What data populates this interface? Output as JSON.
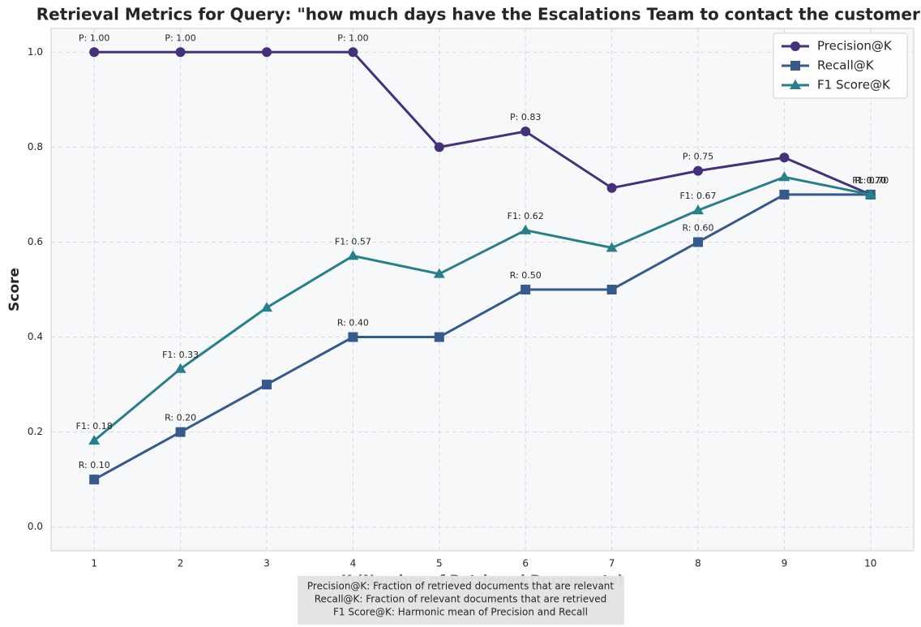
{
  "chart_data": {
    "type": "line",
    "title": "Retrieval Metrics for Query: \"how much days have the Escalations Team  to contact the customer\"",
    "x_label": "K (Number of Retrieved Documents)",
    "y_label": "Score",
    "x": [
      1,
      2,
      3,
      4,
      5,
      6,
      7,
      8,
      9,
      10
    ],
    "xlim": [
      0.5,
      10.5
    ],
    "xticks": [
      1,
      2,
      3,
      4,
      5,
      6,
      7,
      8,
      9,
      10
    ],
    "ylim": [
      -0.05,
      1.05
    ],
    "yticks": [
      {
        "value": 0,
        "label": "0.0"
      },
      0.2,
      0.4,
      0.6,
      0.8,
      {
        "value": 1,
        "label": "1.0"
      }
    ],
    "grid": true,
    "legend": "upper right",
    "series": [
      {
        "name": "Precision@K",
        "color": "#45307b",
        "marker": "circle",
        "values": [
          1,
          1,
          1,
          1,
          0.8,
          0.833,
          0.714,
          0.75,
          0.778,
          0.7
        ],
        "value_labels": [
          "P: 1.00",
          "P: 1.00",
          null,
          "P: 1.00",
          null,
          "P: 0.83",
          null,
          "P: 0.75",
          null,
          "P: 0.70"
        ]
      },
      {
        "name": "Recall@K",
        "color": "#355a8b",
        "marker": "square",
        "values": [
          0.1,
          0.2,
          0.3,
          0.4,
          0.4,
          0.5,
          0.5,
          0.6,
          0.7,
          0.7
        ],
        "value_labels": [
          "R: 0.10",
          "R: 0.20",
          null,
          "R: 0.40",
          null,
          "R: 0.50",
          null,
          "R: 0.60",
          null,
          "R: 0.70"
        ]
      },
      {
        "name": "F1 Score@K",
        "color": "#277f8a",
        "marker": "triangle",
        "values": [
          0.182,
          0.333,
          0.462,
          0.571,
          0.533,
          0.625,
          0.588,
          0.667,
          0.737,
          0.7
        ],
        "value_labels": [
          "F1: 0.18",
          "F1: 0.33",
          null,
          "F1: 0.57",
          null,
          "F1: 0.62",
          null,
          "F1: 0.67",
          null,
          "F1: 0.70"
        ]
      }
    ],
    "notes": [
      "Precision@K: Fraction of retrieved documents that are relevant",
      "Recall@K: Fraction of relevant documents that are retrieved",
      "F1 Score@K: Harmonic mean of Precision and Recall"
    ]
  }
}
